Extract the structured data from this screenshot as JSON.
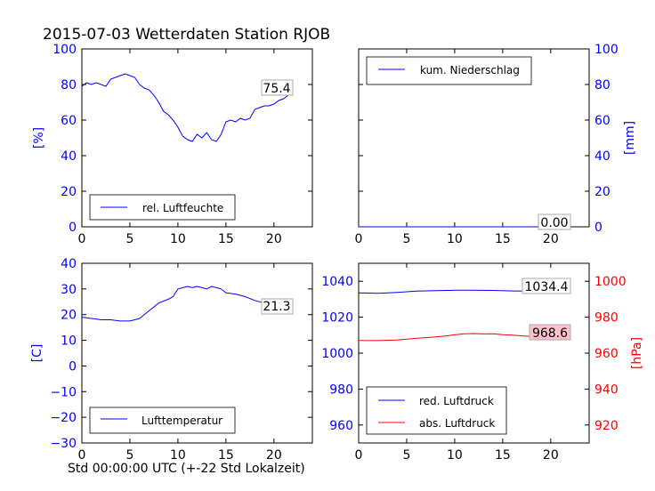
{
  "title": "2015-07-03 Wetterdaten Station RJOB",
  "xlabel": "Std 00:00:00 UTC (+-22 Std Lokalzeit)",
  "colors": {
    "blue": "#0000ff",
    "red": "#ff0000",
    "redLabelBg": "#ffc0cb"
  },
  "chart_data": [
    {
      "id": "humidity",
      "type": "line",
      "ylabel": "[%]",
      "xlim": [
        0,
        24
      ],
      "ylim": [
        0,
        100
      ],
      "xticks": [
        "0",
        "5",
        "10",
        "15",
        "20"
      ],
      "yticks": [
        "0",
        "20",
        "40",
        "60",
        "80",
        "100"
      ],
      "legend": "lower-left",
      "series": [
        {
          "name": "rel. Luftfeuchte",
          "color": "#0000ff",
          "x": [
            0,
            0.5,
            1,
            1.5,
            2,
            2.5,
            3,
            3.5,
            4,
            4.5,
            5,
            5.5,
            6,
            6.5,
            7,
            7.5,
            8,
            8.5,
            9,
            9.5,
            10,
            10.5,
            11,
            11.5,
            12,
            12.5,
            13,
            13.5,
            14,
            14.5,
            15,
            15.5,
            16,
            16.5,
            17,
            17.5,
            18,
            18.5,
            19,
            19.5,
            20,
            20.5,
            21,
            21.5,
            22
          ],
          "values": [
            79,
            81,
            80,
            81,
            80,
            79,
            83,
            84,
            85,
            86,
            85,
            84,
            80,
            78,
            77,
            74,
            70,
            65,
            63,
            60,
            56,
            51,
            49,
            48,
            52,
            50,
            53,
            49,
            48,
            52,
            59,
            60,
            59,
            61,
            60,
            61,
            66,
            67,
            68,
            68,
            69,
            71,
            72,
            74,
            75.4
          ]
        }
      ],
      "last_label": "75.4"
    },
    {
      "id": "precip",
      "type": "line",
      "ylabel": "[mm]",
      "xlim": [
        0,
        24
      ],
      "ylim": [
        0,
        100
      ],
      "xticks": [
        "0",
        "5",
        "10",
        "15",
        "20"
      ],
      "yticks": [
        "0",
        "20",
        "40",
        "60",
        "80",
        "100"
      ],
      "yaxis_side": "right",
      "legend": "top-left",
      "series": [
        {
          "name": "kum. Niederschlag",
          "color": "#0000ff",
          "x": [
            0,
            22
          ],
          "values": [
            0,
            0
          ]
        }
      ],
      "last_label": "0.00"
    },
    {
      "id": "temperature",
      "type": "line",
      "ylabel": "[C]",
      "xlim": [
        0,
        24
      ],
      "ylim": [
        -30,
        40
      ],
      "xticks": [
        "0",
        "5",
        "10",
        "15",
        "20"
      ],
      "yticks": [
        "−30",
        "−20",
        "−10",
        "0",
        "10",
        "20",
        "30",
        "40"
      ],
      "ytick_values": [
        -30,
        -20,
        -10,
        0,
        10,
        20,
        30,
        40
      ],
      "legend": "lower-left",
      "series": [
        {
          "name": "Lufttemperatur",
          "color": "#0000ff",
          "x": [
            0,
            1,
            2,
            3,
            4,
            5,
            5.5,
            6,
            7,
            8,
            9,
            9.5,
            10,
            10.5,
            11,
            11.5,
            12,
            12.5,
            13,
            13.5,
            14,
            14.5,
            15,
            16,
            17,
            18,
            19,
            20,
            21,
            22
          ],
          "values": [
            19,
            18.5,
            18,
            18,
            17.5,
            17.5,
            18,
            18.5,
            21.5,
            24.5,
            26,
            27,
            30,
            30.5,
            31,
            30.5,
            31,
            30.5,
            30,
            31,
            30.5,
            30,
            28.5,
            28,
            27,
            25.5,
            24.5,
            23,
            22,
            21.3
          ]
        }
      ],
      "last_label": "21.3"
    },
    {
      "id": "pressure",
      "type": "line",
      "ylabel": "[hPa]",
      "xlim": [
        0,
        24
      ],
      "ylim": [
        950,
        1050
      ],
      "ylim_right": [
        910,
        1010
      ],
      "xticks": [
        "0",
        "5",
        "10",
        "15",
        "20"
      ],
      "yticks": [
        "960",
        "980",
        "1000",
        "1020",
        "1040"
      ],
      "ytick_values": [
        960,
        980,
        1000,
        1020,
        1040
      ],
      "yticks_right": [
        "920",
        "940",
        "960",
        "980",
        "1000"
      ],
      "ytick_values_right": [
        920,
        940,
        960,
        980,
        1000
      ],
      "legend": "lower-left",
      "series": [
        {
          "name": "red. Luftdruck",
          "color": "#0000ff",
          "axis": "left",
          "x": [
            0,
            2,
            4,
            6,
            8,
            10,
            12,
            14,
            16,
            18,
            20,
            22
          ],
          "values": [
            1033.5,
            1033.3,
            1033.8,
            1034.5,
            1034.8,
            1035.0,
            1035.0,
            1034.9,
            1034.6,
            1034.5,
            1034.4,
            1034.4
          ]
        },
        {
          "name": "abs. Luftdruck",
          "color": "#ff0000",
          "axis": "right",
          "x": [
            0,
            1,
            2,
            3,
            4,
            5,
            6,
            7,
            8,
            9,
            10,
            11,
            12,
            13,
            14,
            15,
            16,
            17,
            18,
            19,
            20,
            21,
            22
          ],
          "values": [
            967.1,
            967.0,
            967.0,
            967.2,
            967.3,
            967.8,
            968.2,
            968.6,
            969.0,
            969.5,
            970.2,
            970.8,
            970.9,
            970.7,
            970.8,
            970.3,
            970.0,
            969.6,
            969.3,
            969.0,
            968.8,
            968.7,
            968.6
          ]
        }
      ],
      "last_labels": [
        "1034.4",
        "968.6"
      ]
    }
  ]
}
